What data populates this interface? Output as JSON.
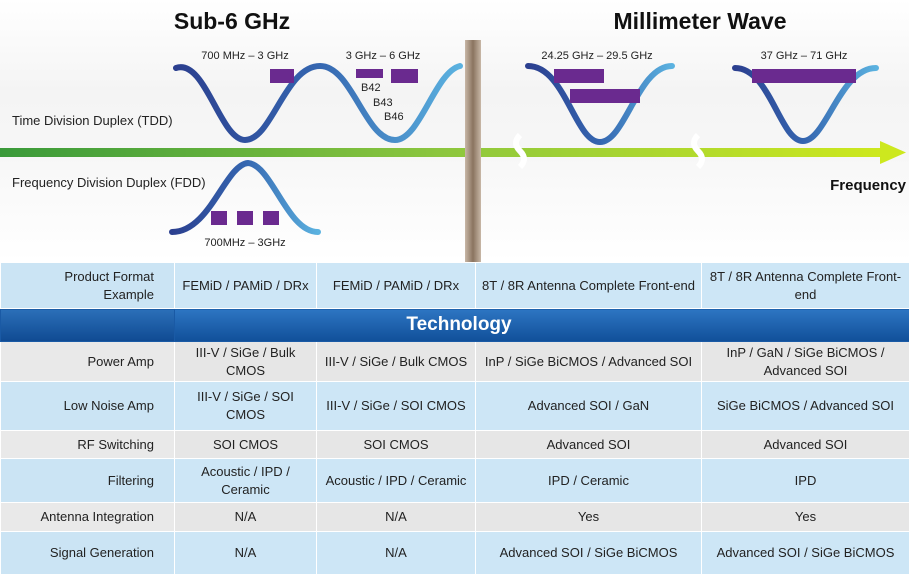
{
  "diagram": {
    "sub6_title": "Sub-6 GHz",
    "mmwave_title": "Millimeter Wave",
    "tdd_label": "Time Division Duplex (TDD)",
    "fdd_label": "Frequency Division Duplex (FDD)",
    "frequency_label": "Frequency",
    "band_700_3": "700 MHz – 3 GHz",
    "band_3_6": "3 GHz – 6 GHz",
    "band_b42": "B42",
    "band_b43": "B43",
    "band_b46": "B46",
    "band_fdd": "700MHz – 3GHz",
    "band_24_29": "24.25 GHz – 29.5 GHz",
    "band_37_71": "37 GHz – 71 GHz",
    "colors": {
      "curve": "#2e4a9a",
      "curve_light": "#4fa4d8",
      "band_block": "#6a2a8f",
      "arrow_start": "#3a9a3a",
      "arrow_end": "#c6e61e",
      "header_blue": "#1a5aa5"
    }
  },
  "table": {
    "rows": [
      {
        "label_lines": [
          "Product Format",
          "Example"
        ],
        "cells": [
          "FEMiD / PAMiD / DRx",
          "FEMiD / PAMiD / DRx",
          "8T / 8R Antenna Complete Front-end",
          "8T / 8R Antenna Complete Front-end"
        ]
      },
      {
        "label_lines": [
          "Power Amp"
        ],
        "cells": [
          "III-V / SiGe / Bulk CMOS",
          "III-V / SiGe / Bulk CMOS",
          "InP / SiGe BiCMOS / Advanced SOI",
          "InP / GaN / SiGe BiCMOS / Advanced SOI"
        ]
      },
      {
        "label_lines": [
          "Low Noise Amp"
        ],
        "cells": [
          "III-V / SiGe / SOI CMOS",
          "III-V / SiGe / SOI CMOS",
          "Advanced SOI / GaN",
          "SiGe BiCMOS / Advanced SOI"
        ]
      },
      {
        "label_lines": [
          "RF Switching"
        ],
        "cells": [
          "SOI CMOS",
          "SOI CMOS",
          "Advanced SOI",
          "Advanced SOI"
        ]
      },
      {
        "label_lines": [
          "Filtering"
        ],
        "cells": [
          "Acoustic / IPD / Ceramic",
          "Acoustic / IPD / Ceramic",
          "IPD / Ceramic",
          "IPD"
        ]
      },
      {
        "label_lines": [
          "Antenna Integration"
        ],
        "cells": [
          "N/A",
          "N/A",
          "Yes",
          "Yes"
        ]
      },
      {
        "label_lines": [
          "Signal Generation"
        ],
        "cells": [
          "N/A",
          "N/A",
          "Advanced SOI / SiGe BiCMOS",
          "Advanced SOI / SiGe BiCMOS"
        ]
      }
    ],
    "technology_header": "Technology"
  }
}
